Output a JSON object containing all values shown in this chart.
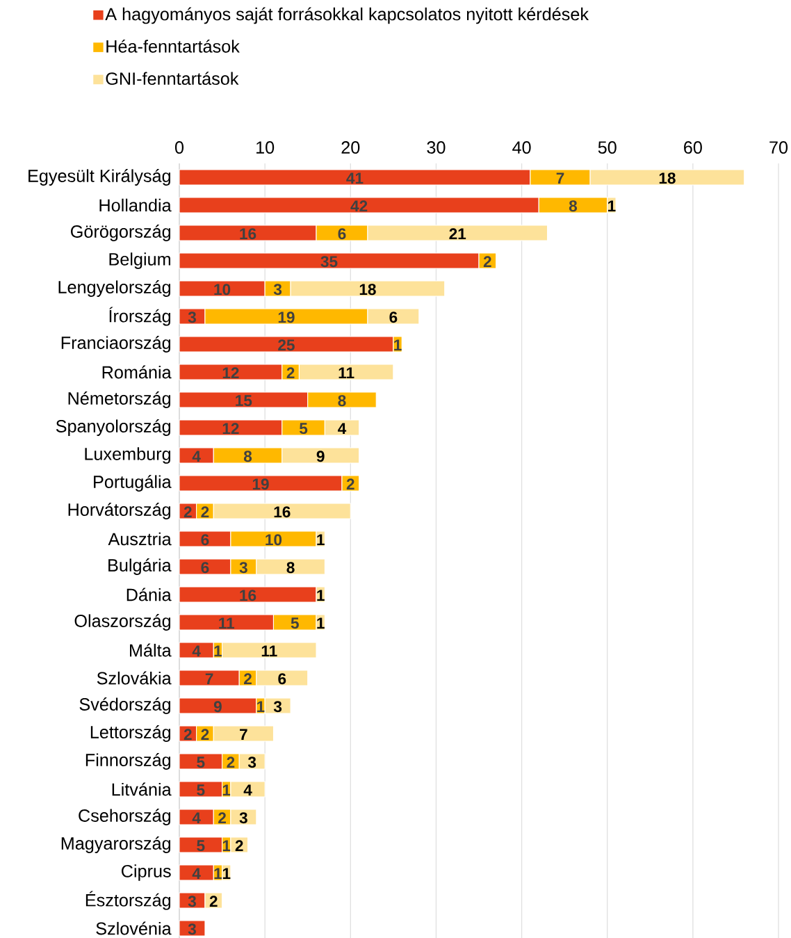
{
  "chart_data": {
    "type": "bar",
    "orientation": "horizontal",
    "stacked": true,
    "data_labels": true,
    "grid": "x",
    "legend": "top",
    "xlim": [
      0,
      70
    ],
    "xticks": [
      0,
      10,
      20,
      30,
      40,
      50,
      60,
      70
    ],
    "categories": [
      "Egyesült Királyság",
      "Hollandia",
      "Görögország",
      "Belgium",
      "Lengyelország",
      "Írország",
      "Franciaország",
      "Románia",
      "Németország",
      "Spanyolország",
      "Luxemburg",
      "Portugália",
      "Horvátország",
      "Ausztria",
      "Bulgária",
      "Dánia",
      "Olaszország",
      "Málta",
      "Szlovákia",
      "Svédország",
      "Lettország",
      "Finnország",
      "Litvánia",
      "Csehország",
      "Magyarország",
      "Ciprus",
      "Észtország",
      "Szlovénia"
    ],
    "series": [
      {
        "name": "A hagyományos saját forrásokkal kapcsolatos nyitott kérdések",
        "color": "#e8401c",
        "values": [
          41,
          42,
          16,
          35,
          10,
          3,
          25,
          12,
          15,
          12,
          4,
          19,
          2,
          6,
          6,
          16,
          11,
          4,
          7,
          9,
          2,
          5,
          5,
          4,
          5,
          4,
          3,
          3
        ]
      },
      {
        "name": "Héa-fenntartások",
        "color": "#ffb800",
        "values": [
          7,
          8,
          6,
          2,
          3,
          19,
          1,
          2,
          8,
          5,
          8,
          2,
          2,
          10,
          3,
          null,
          5,
          1,
          2,
          1,
          2,
          2,
          1,
          2,
          1,
          1,
          null,
          null
        ]
      },
      {
        "name": "GNI-fenntartások",
        "color": "#fde29a",
        "values": [
          18,
          1,
          21,
          null,
          18,
          6,
          null,
          11,
          null,
          4,
          9,
          null,
          16,
          1,
          8,
          1,
          1,
          11,
          6,
          3,
          7,
          3,
          4,
          3,
          2,
          1,
          2,
          null
        ]
      }
    ]
  }
}
